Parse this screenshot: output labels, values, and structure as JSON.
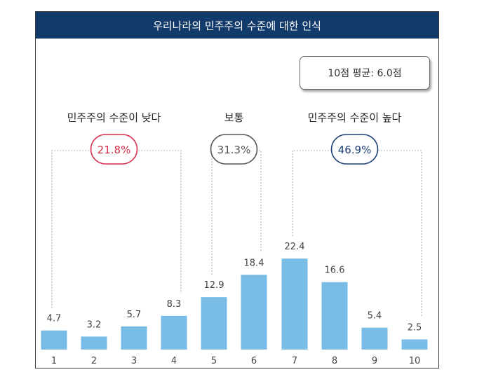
{
  "title": "우리나라의 민주주의 수준에 대한 인식",
  "average_label": "10점 평균: 6.0점",
  "colors": {
    "bar": "#79bde7",
    "title_bg": "#123a6a",
    "low": "#d32f4a",
    "mid": "#555555",
    "high": "#1d3f75"
  },
  "groups": [
    {
      "label": "민주주의 수준이 낮다",
      "percent": "21.8%",
      "from": "1",
      "to": "4",
      "color_key": "low"
    },
    {
      "label": "보통",
      "percent": "31.3%",
      "from": "5",
      "to": "6",
      "color_key": "mid"
    },
    {
      "label": "민주주의 수준이 높다",
      "percent": "46.9%",
      "from": "7",
      "to": "10",
      "color_key": "high"
    }
  ],
  "chart_data": {
    "type": "bar",
    "title": "우리나라의 민주주의 수준에 대한 인식",
    "categories": [
      "1",
      "2",
      "3",
      "4",
      "5",
      "6",
      "7",
      "8",
      "9",
      "10"
    ],
    "values": [
      4.7,
      3.2,
      5.7,
      8.3,
      12.9,
      18.4,
      22.4,
      16.6,
      5.4,
      2.5
    ],
    "value_labels": [
      "4.7",
      "3.2",
      "5.7",
      "8.3",
      "12.9",
      "18.4",
      "22.4",
      "16.6",
      "5.4",
      "2.5"
    ],
    "xlabel": "",
    "ylabel": "",
    "ylim": [
      0,
      25
    ],
    "grid": false,
    "legend": "none"
  }
}
